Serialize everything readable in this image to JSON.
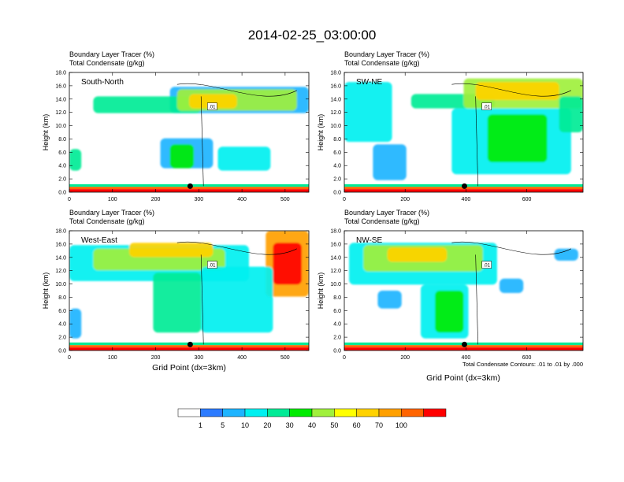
{
  "chart_data": {
    "type": "heatmap",
    "title": "2014-02-25_03:00:00",
    "footnote": "Total Condensate Contours: .01 to .01 by .000",
    "shared_xlabel": "Grid Point (dx=3km)",
    "colorbar": {
      "levels": [
        "1",
        "5",
        "10",
        "20",
        "30",
        "40",
        "50",
        "60",
        "70",
        "100"
      ],
      "colors": [
        "#ffffff",
        "#2c7bff",
        "#1eb4ff",
        "#00f0f0",
        "#00eb96",
        "#00eb00",
        "#a0f03c",
        "#ffff00",
        "#ffd200",
        "#ffa000",
        "#ff6400",
        "#ff0000"
      ]
    },
    "panels": [
      {
        "id": "south-north",
        "label": "South-North",
        "subtitle_left": "Boundary Layer Tracer",
        "subtitle_left_units": "(%)",
        "subtitle_left2": "Total Condensate",
        "subtitle_left2_units": "(g/kg)",
        "ylabel": "Height (km)",
        "xlabel": "",
        "xlim": [
          0,
          555
        ],
        "ylim": [
          0,
          18
        ],
        "xticks": [
          "0",
          "100",
          "200",
          "300",
          "400",
          "500"
        ],
        "xtick_values": [
          0,
          100,
          200,
          300,
          400,
          500
        ],
        "yticks": [
          "0.0",
          "2.0",
          "4.0",
          "6.0",
          "8.0",
          "10.0",
          "12.0",
          "14.0",
          "16.0",
          "18.0"
        ],
        "marker_x": 280,
        "contour_label": ".01"
      },
      {
        "id": "sw-ne",
        "label": "SW-NE",
        "subtitle_left": "Boundary Layer Tracer",
        "subtitle_left_units": "(%)",
        "subtitle_left2": "Total Condensate",
        "subtitle_left2_units": "(g/kg)",
        "ylabel": "Height (km)",
        "xlabel": "",
        "xlim": [
          0,
          785
        ],
        "ylim": [
          0,
          18
        ],
        "xticks": [
          "0",
          "200",
          "400",
          "600"
        ],
        "xtick_values": [
          0,
          200,
          400,
          600
        ],
        "yticks": [
          "0.0",
          "2.0",
          "4.0",
          "6.0",
          "8.0",
          "10.0",
          "12.0",
          "14.0",
          "16.0",
          "18.0"
        ],
        "marker_x": 395,
        "contour_label": ".01"
      },
      {
        "id": "west-east",
        "label": "West-East",
        "subtitle_left": "Boundary Layer Tracer",
        "subtitle_left_units": "(%)",
        "subtitle_left2": "Total Condensate",
        "subtitle_left2_units": "(g/kg)",
        "ylabel": "Height (km)",
        "xlabel": "Grid Point (dx=3km)",
        "xlim": [
          0,
          555
        ],
        "ylim": [
          0,
          18
        ],
        "xticks": [
          "0",
          "100",
          "200",
          "300",
          "400",
          "500"
        ],
        "xtick_values": [
          0,
          100,
          200,
          300,
          400,
          500
        ],
        "yticks": [
          "0.0",
          "2.0",
          "4.0",
          "6.0",
          "8.0",
          "10.0",
          "12.0",
          "14.0",
          "16.0",
          "18.0"
        ],
        "marker_x": 280,
        "contour_label": ".01"
      },
      {
        "id": "nw-se",
        "label": "NW-SE",
        "subtitle_left": "Boundary Layer Tracer",
        "subtitle_left_units": "(%)",
        "subtitle_left2": "Total Condensate",
        "subtitle_left2_units": "(g/kg)",
        "ylabel": "Height (km)",
        "xlabel": "Grid Point (dx=3km)",
        "xlim": [
          0,
          785
        ],
        "ylim": [
          0,
          18
        ],
        "xticks": [
          "0",
          "200",
          "400",
          "600"
        ],
        "xtick_values": [
          0,
          200,
          400,
          600
        ],
        "yticks": [
          "0.0",
          "2.0",
          "4.0",
          "6.0",
          "8.0",
          "10.0",
          "12.0",
          "14.0",
          "16.0",
          "18.0"
        ],
        "marker_x": 395,
        "contour_label": ".01"
      }
    ]
  }
}
